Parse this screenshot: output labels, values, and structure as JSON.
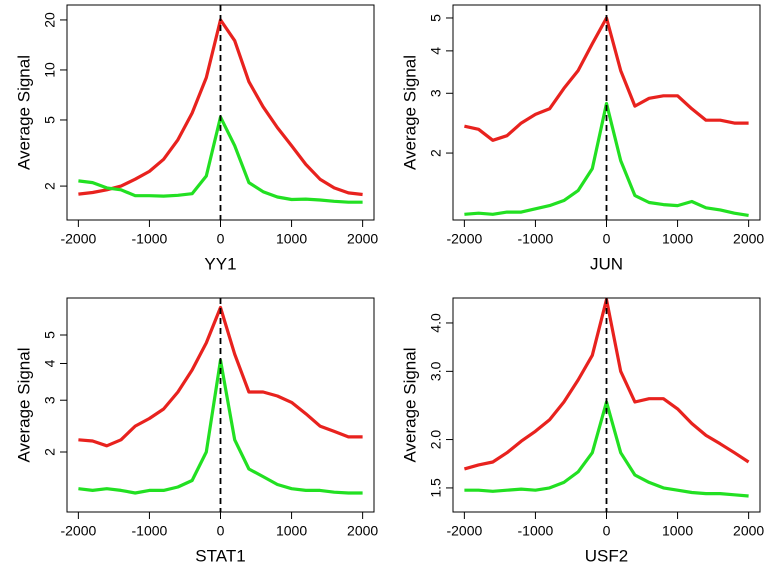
{
  "chart_data": [
    {
      "type": "line",
      "x_label": "YY1",
      "y_label": "Average Signal",
      "log_y": true,
      "vline": 0,
      "x": [
        -2000,
        -1800,
        -1600,
        -1400,
        -1200,
        -1000,
        -800,
        -600,
        -400,
        -200,
        0,
        200,
        400,
        600,
        800,
        1000,
        1200,
        1400,
        1600,
        1800,
        2000
      ],
      "series": [
        {
          "color": "#e8221e",
          "values": [
            1.79,
            1.83,
            1.9,
            2.0,
            2.2,
            2.45,
            2.9,
            3.8,
            5.5,
            9,
            20,
            15,
            8.5,
            6,
            4.5,
            3.5,
            2.7,
            2.2,
            1.95,
            1.82,
            1.78
          ]
        },
        {
          "color": "#22e022",
          "values": [
            2.15,
            2.1,
            1.95,
            1.9,
            1.75,
            1.75,
            1.74,
            1.76,
            1.8,
            2.3,
            5.2,
            3.5,
            2.1,
            1.85,
            1.72,
            1.66,
            1.67,
            1.65,
            1.62,
            1.6,
            1.6
          ]
        }
      ],
      "xlim": [
        -2160,
        2160
      ],
      "xticks": [
        -2000,
        -1000,
        0,
        1000,
        2000
      ],
      "ylim": [
        1.25,
        24.6
      ],
      "yticks": [
        2,
        5,
        10,
        20
      ]
    },
    {
      "type": "line",
      "x_label": "JUN",
      "y_label": "Average Signal",
      "log_y": true,
      "vline": 0,
      "x": [
        -2000,
        -1800,
        -1600,
        -1400,
        -1200,
        -1000,
        -800,
        -600,
        -400,
        -200,
        0,
        200,
        400,
        600,
        800,
        1000,
        1200,
        1400,
        1600,
        1800,
        2000
      ],
      "series": [
        {
          "color": "#e8221e",
          "values": [
            2.4,
            2.35,
            2.18,
            2.25,
            2.45,
            2.6,
            2.7,
            3.1,
            3.5,
            4.2,
            5.0,
            3.5,
            2.75,
            2.9,
            2.95,
            2.95,
            2.7,
            2.5,
            2.5,
            2.45,
            2.45
          ]
        },
        {
          "color": "#22e022",
          "values": [
            1.32,
            1.33,
            1.32,
            1.34,
            1.34,
            1.37,
            1.4,
            1.45,
            1.55,
            1.8,
            2.8,
            1.9,
            1.5,
            1.43,
            1.41,
            1.4,
            1.44,
            1.38,
            1.36,
            1.33,
            1.31
          ]
        }
      ],
      "xlim": [
        -2160,
        2160
      ],
      "xticks": [
        -2000,
        -1000,
        0,
        1000,
        2000
      ],
      "ylim": [
        1.27,
        5.46
      ],
      "yticks": [
        2,
        3,
        4,
        5
      ]
    },
    {
      "type": "line",
      "x_label": "STAT1",
      "y_label": "Average Signal",
      "log_y": true,
      "vline": 0,
      "x": [
        -2000,
        -1800,
        -1600,
        -1400,
        -1200,
        -1000,
        -800,
        -600,
        -400,
        -200,
        0,
        200,
        400,
        600,
        800,
        1000,
        1200,
        1400,
        1600,
        1800,
        2000
      ],
      "series": [
        {
          "color": "#e8221e",
          "values": [
            2.2,
            2.18,
            2.1,
            2.2,
            2.45,
            2.6,
            2.8,
            3.2,
            3.8,
            4.7,
            6.2,
            4.3,
            3.2,
            3.2,
            3.1,
            2.95,
            2.7,
            2.45,
            2.35,
            2.25,
            2.25
          ]
        },
        {
          "color": "#22e022",
          "values": [
            1.5,
            1.48,
            1.5,
            1.48,
            1.45,
            1.48,
            1.48,
            1.52,
            1.6,
            2.0,
            4.1,
            2.2,
            1.75,
            1.65,
            1.55,
            1.5,
            1.48,
            1.48,
            1.46,
            1.45,
            1.45
          ]
        }
      ],
      "xlim": [
        -2160,
        2160
      ],
      "xticks": [
        -2000,
        -1000,
        0,
        1000,
        2000
      ],
      "ylim": [
        1.25,
        6.68
      ],
      "yticks": [
        2,
        3,
        4,
        5
      ]
    },
    {
      "type": "line",
      "x_label": "USF2",
      "y_label": "Average Signal",
      "log_y": true,
      "vline": 0,
      "x": [
        -2000,
        -1800,
        -1600,
        -1400,
        -1200,
        -1000,
        -800,
        -600,
        -400,
        -200,
        0,
        200,
        400,
        600,
        800,
        1000,
        1200,
        1400,
        1600,
        1800,
        2000
      ],
      "series": [
        {
          "color": "#e8221e",
          "values": [
            1.68,
            1.72,
            1.75,
            1.85,
            1.98,
            2.1,
            2.25,
            2.5,
            2.85,
            3.3,
            4.6,
            3.0,
            2.5,
            2.55,
            2.55,
            2.4,
            2.2,
            2.05,
            1.95,
            1.85,
            1.75
          ]
        },
        {
          "color": "#22e022",
          "values": [
            1.48,
            1.48,
            1.47,
            1.48,
            1.49,
            1.48,
            1.5,
            1.55,
            1.65,
            1.85,
            2.5,
            1.85,
            1.62,
            1.55,
            1.5,
            1.48,
            1.46,
            1.45,
            1.45,
            1.44,
            1.43
          ]
        }
      ],
      "xlim": [
        -2160,
        2160
      ],
      "xticks": [
        -2000,
        -1000,
        0,
        1000,
        2000
      ],
      "ylim": [
        1.3,
        4.64
      ],
      "yticks": [
        {
          "value": 1.5,
          "label": "1.5"
        },
        {
          "value": 2.0,
          "label": "2.0"
        },
        {
          "value": 3.0,
          "label": "3.0"
        },
        {
          "value": 4.0,
          "label": "4.0"
        }
      ]
    }
  ]
}
